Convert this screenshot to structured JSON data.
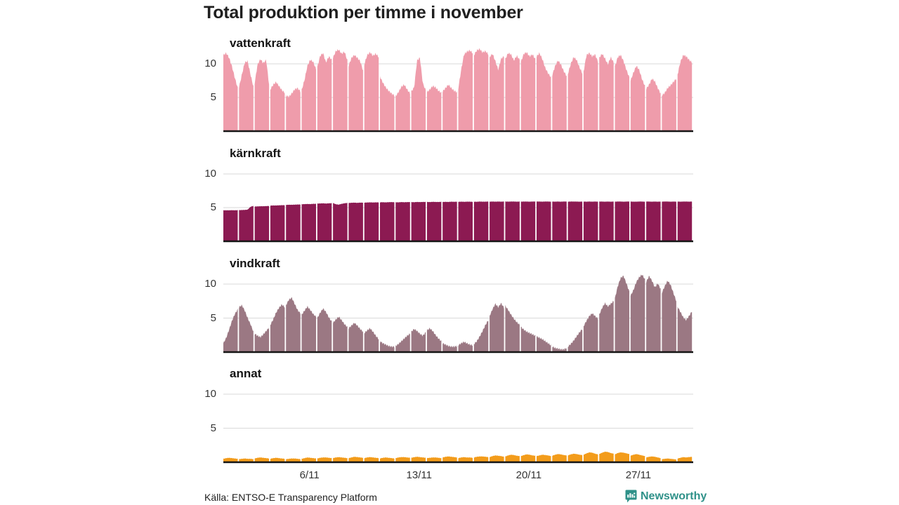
{
  "title": "Total produktion per timme i november",
  "source": "Källa: ENTSO-E Transparency Platform",
  "brand": {
    "name": "Newsworthy",
    "color": "#2f9189",
    "icon": "bar-chart-bubble-icon"
  },
  "axis": {
    "y_ticks": [
      10,
      5
    ],
    "x_ticks": [
      {
        "label": "6/11",
        "day": 6
      },
      {
        "label": "13/11",
        "day": 13
      },
      {
        "label": "20/11",
        "day": 20
      },
      {
        "label": "27/11",
        "day": 27
      }
    ]
  },
  "chart_data": {
    "type": "area",
    "title": "Total produktion per timme i november",
    "n_days": 30,
    "samples_per_day": 6,
    "ylim": [
      0,
      12.5
    ],
    "grid": "on",
    "x_labels": [
      "6/11",
      "13/11",
      "20/11",
      "27/11"
    ],
    "series": [
      {
        "name": "vattenkraft",
        "color": "#ef9cab",
        "days": [
          [
            11.3,
            11.6,
            10.9,
            9.6,
            7.9,
            6.4
          ],
          [
            6.5,
            8.4,
            10.2,
            10.4,
            8.4,
            6.6
          ],
          [
            7.1,
            9.9,
            10.7,
            10.1,
            10.6,
            6.9
          ],
          [
            6.2,
            6.9,
            7.3,
            6.7,
            6.1,
            5.7
          ],
          [
            5.3,
            5.1,
            5.6,
            6.2,
            6.4,
            5.9
          ],
          [
            6.1,
            7.6,
            9.7,
            10.6,
            10.3,
            9.2
          ],
          [
            9.5,
            11.2,
            11.6,
            10.2,
            11.1,
            10.6
          ],
          [
            10.9,
            11.9,
            12.1,
            11.5,
            11.8,
            10.5
          ],
          [
            9.7,
            10.9,
            11.3,
            10.9,
            10.4,
            9.0
          ],
          [
            9.9,
            11.3,
            11.7,
            11.2,
            11.5,
            11.0
          ],
          [
            8.1,
            7.2,
            6.5,
            6.0,
            5.6,
            5.3
          ],
          [
            5.2,
            5.8,
            6.6,
            6.9,
            6.2,
            5.6
          ],
          [
            5.9,
            6.5,
            10.5,
            10.9,
            7.1,
            6.1
          ],
          [
            5.8,
            6.2,
            6.7,
            6.5,
            6.0,
            5.7
          ],
          [
            5.9,
            6.4,
            6.9,
            6.4,
            6.0,
            5.8
          ],
          [
            6.3,
            9.1,
            11.4,
            11.8,
            12.0,
            11.6
          ],
          [
            11.3,
            12.0,
            12.2,
            11.7,
            11.9,
            11.4
          ],
          [
            11.0,
            11.5,
            10.4,
            9.1,
            10.8,
            11.1
          ],
          [
            10.7,
            11.6,
            11.4,
            10.5,
            11.2,
            10.6
          ],
          [
            10.3,
            11.5,
            11.7,
            11.1,
            11.4,
            10.7
          ],
          [
            11.1,
            11.6,
            10.7,
            9.4,
            8.6,
            8.0
          ],
          [
            8.3,
            9.7,
            10.5,
            9.9,
            8.9,
            8.2
          ],
          [
            8.5,
            10.0,
            11.0,
            10.6,
            9.5,
            8.6
          ],
          [
            8.8,
            11.3,
            11.6,
            11.1,
            11.4,
            10.3
          ],
          [
            10.9,
            11.5,
            10.8,
            9.9,
            11.0,
            10.2
          ],
          [
            9.6,
            11.0,
            11.3,
            10.4,
            9.1,
            8.0
          ],
          [
            7.5,
            8.7,
            9.7,
            9.1,
            7.7,
            6.7
          ],
          [
            6.3,
            6.9,
            7.8,
            7.4,
            6.4,
            5.6
          ],
          [
            5.3,
            5.7,
            6.4,
            6.8,
            7.3,
            7.8
          ],
          [
            8.4,
            10.3,
            11.3,
            11.1,
            10.6,
            10.2
          ]
        ]
      },
      {
        "name": "kärnkraft",
        "color": "#8c1a52",
        "days": [
          [
            4.6,
            4.6,
            4.6,
            4.62,
            4.6,
            4.62
          ],
          [
            4.62,
            4.64,
            4.66,
            4.7,
            5.12,
            5.26
          ],
          [
            5.16,
            5.18,
            5.2,
            5.2,
            5.22,
            5.24
          ],
          [
            5.3,
            5.32,
            5.32,
            5.34,
            5.36,
            5.36
          ],
          [
            5.4,
            5.42,
            5.42,
            5.44,
            5.46,
            5.46
          ],
          [
            5.5,
            5.52,
            5.54,
            5.52,
            5.56,
            5.56
          ],
          [
            5.6,
            5.62,
            5.64,
            5.6,
            5.64,
            5.66
          ],
          [
            5.68,
            5.5,
            5.44,
            5.56,
            5.64,
            5.7
          ],
          [
            5.68,
            5.72,
            5.74,
            5.7,
            5.74,
            5.74
          ],
          [
            5.74,
            5.76,
            5.78,
            5.76,
            5.78,
            5.78
          ],
          [
            5.78,
            5.8,
            5.78,
            5.8,
            5.82,
            5.8
          ],
          [
            5.8,
            5.78,
            5.82,
            5.8,
            5.82,
            5.82
          ],
          [
            5.82,
            5.8,
            5.84,
            5.82,
            5.84,
            5.84
          ],
          [
            5.84,
            5.82,
            5.86,
            5.84,
            5.84,
            5.86
          ],
          [
            5.84,
            5.86,
            5.84,
            5.88,
            5.86,
            5.88
          ],
          [
            5.86,
            5.88,
            5.86,
            5.88,
            5.88,
            5.86
          ],
          [
            5.88,
            5.86,
            5.9,
            5.88,
            5.88,
            5.9
          ],
          [
            5.88,
            5.9,
            5.88,
            5.9,
            5.88,
            5.9
          ],
          [
            5.9,
            5.88,
            5.9,
            5.9,
            5.88,
            5.9
          ],
          [
            5.88,
            5.9,
            5.9,
            5.88,
            5.9,
            5.9
          ],
          [
            5.9,
            5.9,
            5.88,
            5.9,
            5.9,
            5.88
          ],
          [
            5.9,
            5.88,
            5.9,
            5.88,
            5.9,
            5.9
          ],
          [
            5.88,
            5.9,
            5.9,
            5.9,
            5.88,
            5.9
          ],
          [
            5.9,
            5.88,
            5.9,
            5.88,
            5.9,
            5.88
          ],
          [
            5.9,
            5.9,
            5.88,
            5.9,
            5.88,
            5.9
          ],
          [
            5.88,
            5.9,
            5.9,
            5.88,
            5.9,
            5.9
          ],
          [
            5.9,
            5.88,
            5.88,
            5.9,
            5.9,
            5.88
          ],
          [
            5.9,
            5.9,
            5.88,
            5.9,
            5.88,
            5.9
          ],
          [
            5.88,
            5.9,
            5.9,
            5.88,
            5.9,
            5.88
          ],
          [
            5.9,
            5.88,
            5.9,
            5.9,
            5.88,
            5.9
          ]
        ]
      },
      {
        "name": "vindkraft",
        "color": "#9b7883",
        "days": [
          [
            1.3,
            2.1,
            3.3,
            4.6,
            5.6,
            6.3
          ],
          [
            6.6,
            6.9,
            6.1,
            5.0,
            4.1,
            3.0
          ],
          [
            2.7,
            2.4,
            2.2,
            2.6,
            3.1,
            3.6
          ],
          [
            4.0,
            4.8,
            5.8,
            6.5,
            7.0,
            6.6
          ],
          [
            6.9,
            7.7,
            8.0,
            7.1,
            6.2,
            5.7
          ],
          [
            5.5,
            6.1,
            6.7,
            6.2,
            5.6,
            5.2
          ],
          [
            5.0,
            5.8,
            6.4,
            5.9,
            5.1,
            4.5
          ],
          [
            4.3,
            4.8,
            5.2,
            4.7,
            4.1,
            3.7
          ],
          [
            3.5,
            3.9,
            4.3,
            3.9,
            3.4,
            3.0
          ],
          [
            2.8,
            3.2,
            3.5,
            3.0,
            2.4,
            1.9
          ],
          [
            1.6,
            1.3,
            1.1,
            0.9,
            0.8,
            0.8
          ],
          [
            0.9,
            1.2,
            1.6,
            2.0,
            2.4,
            2.7
          ],
          [
            3.0,
            3.4,
            3.1,
            2.7,
            2.4,
            2.9
          ],
          [
            3.2,
            3.5,
            3.1,
            2.5,
            2.0,
            1.6
          ],
          [
            1.3,
            1.1,
            0.9,
            0.8,
            0.8,
            0.9
          ],
          [
            1.0,
            1.3,
            1.5,
            1.3,
            1.1,
            1.0
          ],
          [
            1.2,
            1.6,
            2.3,
            3.1,
            4.0,
            4.7
          ],
          [
            5.3,
            6.3,
            7.1,
            6.6,
            7.2,
            6.5
          ],
          [
            6.8,
            6.2,
            5.5,
            4.9,
            4.4,
            4.0
          ],
          [
            3.7,
            3.3,
            3.0,
            2.8,
            2.6,
            2.4
          ],
          [
            2.3,
            2.1,
            1.9,
            1.6,
            1.3,
            1.0
          ],
          [
            0.8,
            0.6,
            0.5,
            0.4,
            0.4,
            0.6
          ],
          [
            0.8,
            1.2,
            1.7,
            2.3,
            2.9,
            3.4
          ],
          [
            3.8,
            4.6,
            5.3,
            5.7,
            5.3,
            4.9
          ],
          [
            5.5,
            6.5,
            7.2,
            6.7,
            7.1,
            7.5
          ],
          [
            7.9,
            9.7,
            10.9,
            11.2,
            10.1,
            8.9
          ],
          [
            8.3,
            9.1,
            10.3,
            11.0,
            11.4,
            10.7
          ],
          [
            10.3,
            11.2,
            10.5,
            9.5,
            10.1,
            9.3
          ],
          [
            8.7,
            9.7,
            10.5,
            9.9,
            8.7,
            7.5
          ],
          [
            6.7,
            5.9,
            5.1,
            4.7,
            5.3,
            6.0
          ]
        ]
      },
      {
        "name": "annat",
        "color": "#f39c1b",
        "days": [
          [
            0.5,
            0.6,
            0.65,
            0.6,
            0.55,
            0.5
          ],
          [
            0.45,
            0.5,
            0.55,
            0.5,
            0.5,
            0.45
          ],
          [
            0.55,
            0.65,
            0.7,
            0.65,
            0.6,
            0.55
          ],
          [
            0.5,
            0.6,
            0.65,
            0.6,
            0.55,
            0.5
          ],
          [
            0.45,
            0.5,
            0.55,
            0.55,
            0.5,
            0.45
          ],
          [
            0.5,
            0.6,
            0.7,
            0.65,
            0.6,
            0.55
          ],
          [
            0.55,
            0.65,
            0.7,
            0.7,
            0.65,
            0.6
          ],
          [
            0.6,
            0.7,
            0.75,
            0.7,
            0.65,
            0.6
          ],
          [
            0.6,
            0.7,
            0.8,
            0.75,
            0.7,
            0.65
          ],
          [
            0.6,
            0.7,
            0.75,
            0.7,
            0.65,
            0.6
          ],
          [
            0.55,
            0.65,
            0.7,
            0.65,
            0.6,
            0.55
          ],
          [
            0.6,
            0.7,
            0.75,
            0.75,
            0.7,
            0.65
          ],
          [
            0.65,
            0.75,
            0.8,
            0.75,
            0.7,
            0.65
          ],
          [
            0.6,
            0.65,
            0.7,
            0.7,
            0.65,
            0.6
          ],
          [
            0.7,
            0.8,
            0.85,
            0.8,
            0.75,
            0.7
          ],
          [
            0.6,
            0.7,
            0.75,
            0.7,
            0.7,
            0.65
          ],
          [
            0.7,
            0.8,
            0.85,
            0.85,
            0.8,
            0.75
          ],
          [
            0.75,
            0.9,
            1.0,
            0.95,
            0.9,
            0.8
          ],
          [
            0.85,
            1.0,
            1.1,
            1.05,
            0.95,
            0.9
          ],
          [
            0.9,
            1.05,
            1.15,
            1.1,
            1.0,
            0.95
          ],
          [
            0.9,
            1.0,
            1.1,
            1.05,
            1.0,
            0.9
          ],
          [
            0.95,
            1.1,
            1.2,
            1.15,
            1.05,
            1.0
          ],
          [
            1.0,
            1.15,
            1.25,
            1.2,
            1.1,
            1.05
          ],
          [
            1.1,
            1.3,
            1.45,
            1.4,
            1.25,
            1.15
          ],
          [
            1.2,
            1.4,
            1.55,
            1.5,
            1.35,
            1.25
          ],
          [
            1.15,
            1.35,
            1.45,
            1.4,
            1.3,
            1.2
          ],
          [
            0.95,
            1.1,
            1.2,
            1.1,
            1.0,
            0.9
          ],
          [
            0.7,
            0.8,
            0.85,
            0.8,
            0.7,
            0.6
          ],
          [
            0.45,
            0.5,
            0.55,
            0.5,
            0.45,
            0.4
          ],
          [
            0.55,
            0.65,
            0.75,
            0.7,
            0.75,
            0.8
          ]
        ]
      }
    ]
  }
}
